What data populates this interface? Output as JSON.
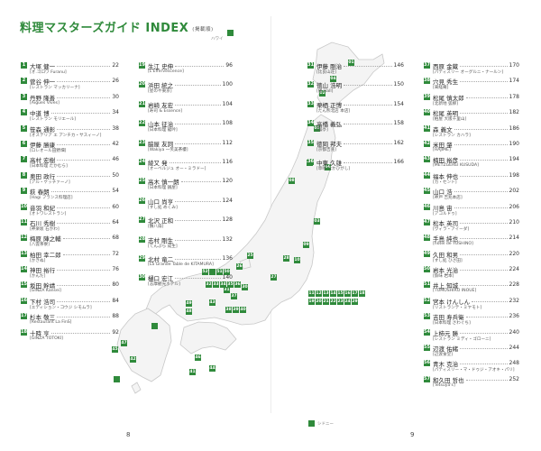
{
  "header": {
    "title": "料理マスターズガイド INDEX",
    "subtitle": "(掲載順)"
  },
  "pages": {
    "left": "8",
    "right": "9"
  },
  "map": {
    "place_labels": [
      "ハワイ",
      "シドニー"
    ],
    "marker_numbers": [
      "01",
      "02",
      "03",
      "04",
      "05",
      "06",
      "07",
      "08",
      "09",
      "10",
      "11",
      "12",
      "13",
      "14",
      "15",
      "16",
      "17",
      "18",
      "19",
      "20",
      "21",
      "22",
      "23",
      "24",
      "25",
      "26",
      "27",
      "28",
      "29",
      "30",
      "31",
      "32",
      "33",
      "34",
      "35",
      "36",
      "37",
      "38",
      "39",
      "40",
      "41",
      "42",
      "43",
      "44",
      "45",
      "46",
      "47",
      "48",
      "49",
      "50",
      "51",
      "52"
    ]
  },
  "entries": [
    {
      "num": "1",
      "name": "大塚 健一",
      "rest": "[オ.ゴロワ Furanu]",
      "page": "22"
    },
    {
      "num": "2",
      "name": "菅谷 伸一",
      "rest": "[レストラン マッカリーナ]",
      "page": "26"
    },
    {
      "num": "3",
      "name": "丹野 隆善",
      "rest": "[Aigues Vives]",
      "page": "30"
    },
    {
      "num": "4",
      "name": "中道 博",
      "rest": "[レストラン モリエール]",
      "page": "34"
    },
    {
      "num": "5",
      "name": "笹森 通彰",
      "rest": "[オステリア エ アンチカ・サスィーノ]",
      "page": "38"
    },
    {
      "num": "6",
      "name": "伊藤 勝康",
      "rest": "[ロレオール田野畑]",
      "page": "42"
    },
    {
      "num": "7",
      "name": "高村 宏樹",
      "rest": "[日本料理 たかむら]",
      "page": "46"
    },
    {
      "num": "8",
      "name": "奥田 政行",
      "rest": "[アル・ケッチァーノ]",
      "page": "50"
    },
    {
      "num": "9",
      "name": "萩 春朗",
      "rest": "[Hagi フランス料理店]",
      "page": "54"
    },
    {
      "num": "10",
      "name": "音羽 和紀",
      "rest": "[オトワレストラン]",
      "page": "60"
    },
    {
      "num": "11",
      "name": "石川 秀樹",
      "rest": "[神楽坂 石かわ]",
      "page": "64"
    },
    {
      "num": "12",
      "name": "梅原 陣之輔",
      "rest": "[八雲茶寮]",
      "page": "68"
    },
    {
      "num": "13",
      "name": "柏田 幸二郎",
      "rest": "[かきぬ]",
      "page": "72"
    },
    {
      "num": "14",
      "name": "神田 裕行",
      "rest": "[かんだ]",
      "page": "76"
    },
    {
      "num": "15",
      "name": "坂田 幹靖",
      "rest": "[GINZA Kansei]",
      "page": "80"
    },
    {
      "num": "16",
      "name": "下村 浩司",
      "rest": "[エディション・コウジ シモムラ]",
      "page": "84"
    },
    {
      "num": "17",
      "name": "杉本 敬三",
      "rest": "[Restaurant La FinS]",
      "page": "88"
    },
    {
      "num": "18",
      "name": "十時 亨",
      "rest": "[GINZA TOTOKI]",
      "page": "92"
    },
    {
      "num": "19",
      "name": "生江 史伸",
      "rest": "[L'Effervescence]",
      "page": "96"
    },
    {
      "num": "20",
      "name": "浜田 統之",
      "rest": "[星のや東京]",
      "page": "100"
    },
    {
      "num": "21",
      "name": "岩崎 友宏",
      "rest": "[寿司 & Essence]",
      "page": "104"
    },
    {
      "num": "22",
      "name": "山本 征治",
      "rest": "[日本料理 龍吟]",
      "page": "108"
    },
    {
      "num": "23",
      "name": "脇屋 友詞",
      "rest": "[Wakiya 一笑美茶樓]",
      "page": "112"
    },
    {
      "num": "24",
      "name": "綾又 発",
      "rest": "[オーベルジュ オー・ミラドー]",
      "page": "116"
    },
    {
      "num": "25",
      "name": "高木 慎一朗",
      "rest": "[日本料理 銭屋]",
      "page": "120"
    },
    {
      "num": "26",
      "name": "山口 尚亨",
      "rest": "[すし処 めくみ]",
      "page": "124"
    },
    {
      "num": "27",
      "name": "北沢 正和",
      "rest": "[鶴八扇]",
      "page": "128"
    },
    {
      "num": "28",
      "name": "志村 剛生",
      "rest": "[てんぷら 成生]",
      "page": "132"
    },
    {
      "num": "29",
      "name": "北村 竜二",
      "rest": "[La Grande Table de KITAMURA]",
      "page": "136"
    },
    {
      "num": "30",
      "name": "樋口 宏江",
      "rest": "[志摩観光ホテル]",
      "page": "140"
    },
    {
      "num": "31",
      "name": "伊藤 剛治",
      "rest": "[比良山荘]",
      "page": "146"
    },
    {
      "num": "32",
      "name": "徳山 浩明",
      "rest": "[飯 Hall]",
      "page": "150"
    },
    {
      "num": "33",
      "name": "栗栖 正博",
      "rest": "[たん熊北店 本店]",
      "page": "154"
    },
    {
      "num": "34",
      "name": "高橋 義弘",
      "rest": "[瓢亭]",
      "page": "158"
    },
    {
      "num": "35",
      "name": "徳岡 邦夫",
      "rest": "[京都吉兆]",
      "page": "162"
    },
    {
      "num": "36",
      "name": "中東 久雄",
      "rest": "[草喰 なかひがし]",
      "page": "166"
    },
    {
      "num": "37",
      "name": "西原 金蔵",
      "rest": "[パティスリー オーグルニ・ナールン]",
      "page": "170"
    },
    {
      "num": "38",
      "name": "穴見 秀生",
      "rest": "[来経庵]",
      "page": "174"
    },
    {
      "num": "39",
      "name": "松尾 慎太郎",
      "rest": "[北新地 弧柳]",
      "page": "178"
    },
    {
      "num": "40",
      "name": "松尾 英明",
      "rest": "[柏屋 大阪千里山]",
      "page": "182"
    },
    {
      "num": "41",
      "name": "森 義文",
      "rest": "[レストラン カハラ]",
      "page": "186"
    },
    {
      "num": "42",
      "name": "米田 肇",
      "rest": "[HAJIME]",
      "page": "190"
    },
    {
      "num": "43",
      "name": "楠田 裕彦",
      "rest": "[METZGEREI KUSUDA]",
      "page": "194"
    },
    {
      "num": "44",
      "name": "福本 伸也",
      "rest": "[カ・セント]",
      "page": "198"
    },
    {
      "num": "45",
      "name": "山口 浩",
      "rest": "[神戸 吉兆本店]",
      "page": "202"
    },
    {
      "num": "46",
      "name": "川島 宙",
      "rest": "[アコルドゥ]",
      "page": "206"
    },
    {
      "num": "47",
      "name": "松本 英司",
      "rest": "[ヴィラ・アイーダ]",
      "page": "210"
    },
    {
      "num": "48",
      "name": "手島 純也",
      "rest": "[hôtel de YOSHINO]",
      "page": "214"
    },
    {
      "num": "49",
      "name": "久田 和男",
      "rest": "[すし処 ひさ田]",
      "page": "220"
    },
    {
      "num": "50",
      "name": "岩本 光治",
      "rest": "[魚味 岩本]",
      "page": "224"
    },
    {
      "num": "51",
      "name": "井上 知城",
      "rest": "[TOMOSHIRO INOUE]",
      "page": "228"
    },
    {
      "num": "52",
      "name": "宮本 けんしん",
      "rest": "[リストランテ・ミヤモト]",
      "page": "232"
    },
    {
      "num": "53",
      "name": "吉田 寿兵衛",
      "rest": "[日本料理 さわぐち]",
      "page": "236"
    },
    {
      "num": "54",
      "name": "上柿元 勝",
      "rest": "[レストラン ミディ・ゴローニ]",
      "page": "240"
    },
    {
      "num": "55",
      "name": "辺渡 佑緒",
      "rest": "[辺渡食堂]",
      "page": "244"
    },
    {
      "num": "56",
      "name": "青木 克治",
      "rest": "[パティスリー・マ・ドゥジ・アオキ・パリ]",
      "page": "248"
    },
    {
      "num": "57",
      "name": "和久田 哲也",
      "rest": "[Tetsuya's]",
      "page": "252"
    }
  ]
}
